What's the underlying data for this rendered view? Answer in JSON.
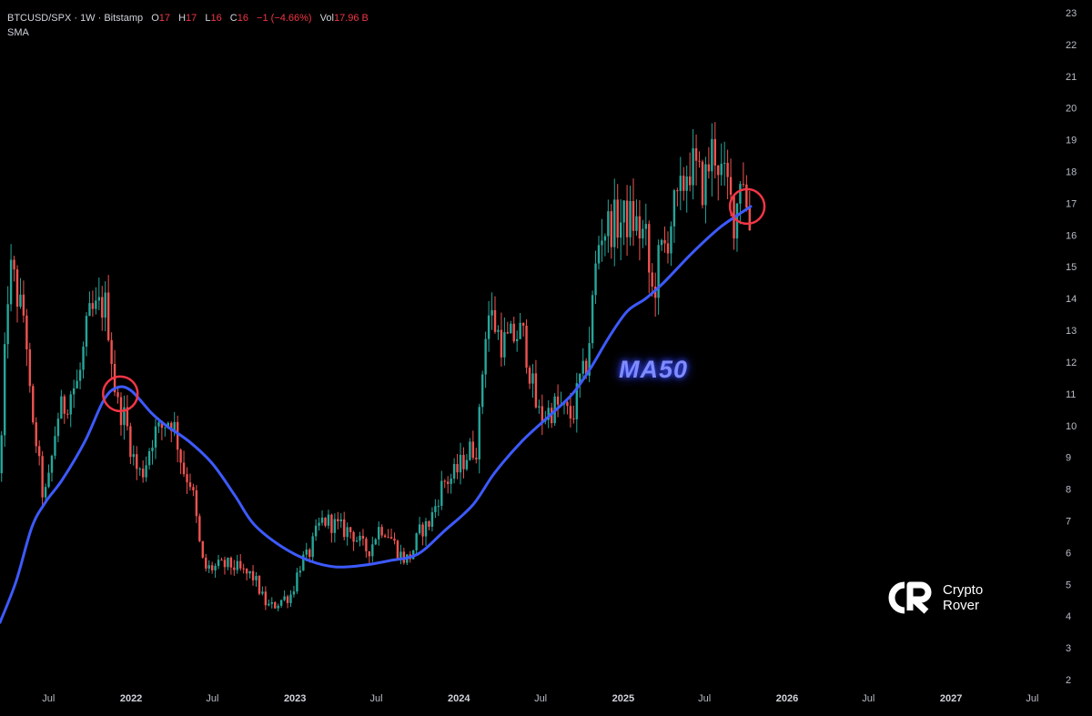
{
  "legend": {
    "symbol": "BTCUSD/SPX · 1W · Bitstamp",
    "open_label": "O",
    "open": "17",
    "high_label": "H",
    "high": "17",
    "low_label": "L",
    "low": "16",
    "close_label": "C",
    "close": "16",
    "change": "−1 (−4.66%)",
    "vol_label": "Vol",
    "vol": "17.96 B",
    "indicator": "SMA"
  },
  "annotation": {
    "ma_label": "MA50"
  },
  "brand": {
    "line1": "Crypto",
    "line2": "Rover",
    "logo_icon": "crypto-rover-logo-icon"
  },
  "colors": {
    "up": "#26a69a",
    "down": "#ef5350",
    "ma": "#3d5afe",
    "circle": "#f23645",
    "background": "#000000"
  },
  "chart_data": {
    "type": "candlestick",
    "timeframe": "1W",
    "ylim": [
      2,
      23
    ],
    "yticks": [
      2,
      3,
      4,
      5,
      6,
      7,
      8,
      9,
      10,
      11,
      12,
      13,
      14,
      15,
      16,
      17,
      18,
      19,
      20,
      21,
      22,
      23
    ],
    "xlim": [
      "2021-03-15",
      "2027-09-01"
    ],
    "xticks": [
      {
        "date": "2021-07-01",
        "label": "Jul"
      },
      {
        "date": "2022-01-01",
        "label": "2022"
      },
      {
        "date": "2022-07-01",
        "label": "Jul"
      },
      {
        "date": "2023-01-01",
        "label": "2023"
      },
      {
        "date": "2023-07-01",
        "label": "Jul"
      },
      {
        "date": "2024-01-01",
        "label": "2024"
      },
      {
        "date": "2024-07-01",
        "label": "Jul"
      },
      {
        "date": "2025-01-01",
        "label": "2025"
      },
      {
        "date": "2025-07-01",
        "label": "Jul"
      },
      {
        "date": "2026-01-01",
        "label": "2026"
      },
      {
        "date": "2026-07-01",
        "label": "Jul"
      },
      {
        "date": "2027-01-01",
        "label": "2027"
      },
      {
        "date": "2027-07-01",
        "label": "Jul"
      }
    ],
    "price_anchors": [
      [
        "2021-03-15",
        8.5
      ],
      [
        "2021-04-10",
        14.8
      ],
      [
        "2021-05-10",
        13.5
      ],
      [
        "2021-06-01",
        9.8
      ],
      [
        "2021-06-25",
        7.8
      ],
      [
        "2021-08-01",
        10.5
      ],
      [
        "2021-09-01",
        11.2
      ],
      [
        "2021-10-10",
        13.5
      ],
      [
        "2021-11-05",
        13.8
      ],
      [
        "2021-12-10",
        10.5
      ],
      [
        "2022-01-25",
        8.5
      ],
      [
        "2022-03-01",
        9.8
      ],
      [
        "2022-04-01",
        10.2
      ],
      [
        "2022-05-10",
        8.4
      ],
      [
        "2022-06-20",
        5.5
      ],
      [
        "2022-08-10",
        5.6
      ],
      [
        "2022-09-25",
        5.3
      ],
      [
        "2022-11-10",
        4.3
      ],
      [
        "2022-12-20",
        4.6
      ],
      [
        "2023-01-25",
        5.8
      ],
      [
        "2023-03-10",
        7.0
      ],
      [
        "2023-05-01",
        6.7
      ],
      [
        "2023-06-15",
        6.1
      ],
      [
        "2023-07-15",
        6.8
      ],
      [
        "2023-09-10",
        5.8
      ],
      [
        "2023-10-20",
        6.8
      ],
      [
        "2023-12-10",
        8.3
      ],
      [
        "2024-02-10",
        9.3
      ],
      [
        "2024-03-10",
        13.5
      ],
      [
        "2024-04-15",
        12.6
      ],
      [
        "2024-05-20",
        12.9
      ],
      [
        "2024-07-05",
        10.3
      ],
      [
        "2024-08-10",
        10.6
      ],
      [
        "2024-09-10",
        10.3
      ],
      [
        "2024-10-05",
        11.5
      ],
      [
        "2024-11-20",
        16.2
      ],
      [
        "2024-12-20",
        16.4
      ],
      [
        "2025-01-20",
        16.5
      ],
      [
        "2025-02-20",
        16.0
      ],
      [
        "2025-03-10",
        14.2
      ],
      [
        "2025-04-01",
        15.5
      ],
      [
        "2025-05-01",
        16.8
      ],
      [
        "2025-06-01",
        18.2
      ],
      [
        "2025-07-01",
        17.6
      ],
      [
        "2025-07-25",
        18.7
      ],
      [
        "2025-08-20",
        17.6
      ],
      [
        "2025-09-10",
        16.6
      ],
      [
        "2025-09-25",
        18.2
      ],
      [
        "2025-10-12",
        16.3
      ]
    ],
    "ma50": {
      "name": "MA50",
      "points": [
        [
          "2021-03-15",
          3.8
        ],
        [
          "2021-04-20",
          5.1
        ],
        [
          "2021-05-25",
          6.8
        ],
        [
          "2021-06-25",
          7.6
        ],
        [
          "2021-08-01",
          8.3
        ],
        [
          "2021-09-20",
          9.5
        ],
        [
          "2021-11-01",
          10.8
        ],
        [
          "2021-12-01",
          11.2
        ],
        [
          "2022-01-01",
          11.1
        ],
        [
          "2022-02-15",
          10.4
        ],
        [
          "2022-03-20",
          10.0
        ],
        [
          "2022-05-10",
          9.5
        ],
        [
          "2022-07-01",
          8.8
        ],
        [
          "2022-08-20",
          7.8
        ],
        [
          "2022-10-01",
          6.9
        ],
        [
          "2022-12-01",
          6.2
        ],
        [
          "2023-02-01",
          5.75
        ],
        [
          "2023-04-01",
          5.55
        ],
        [
          "2023-06-01",
          5.6
        ],
        [
          "2023-08-01",
          5.75
        ],
        [
          "2023-10-01",
          5.95
        ],
        [
          "2023-12-01",
          6.7
        ],
        [
          "2024-02-01",
          7.5
        ],
        [
          "2024-03-20",
          8.5
        ],
        [
          "2024-05-20",
          9.5
        ],
        [
          "2024-07-20",
          10.3
        ],
        [
          "2024-09-10",
          11.0
        ],
        [
          "2024-10-20",
          11.8
        ],
        [
          "2024-12-01",
          12.8
        ],
        [
          "2025-01-10",
          13.6
        ],
        [
          "2025-02-20",
          14.0
        ],
        [
          "2025-04-01",
          14.5
        ],
        [
          "2025-06-01",
          15.4
        ],
        [
          "2025-08-01",
          16.2
        ],
        [
          "2025-09-10",
          16.6
        ],
        [
          "2025-10-12",
          16.9
        ]
      ]
    },
    "markers": [
      {
        "date": "2021-12-08",
        "value": 11.0,
        "shape": "circle"
      },
      {
        "date": "2025-10-04",
        "value": 16.9,
        "shape": "circle"
      }
    ]
  }
}
